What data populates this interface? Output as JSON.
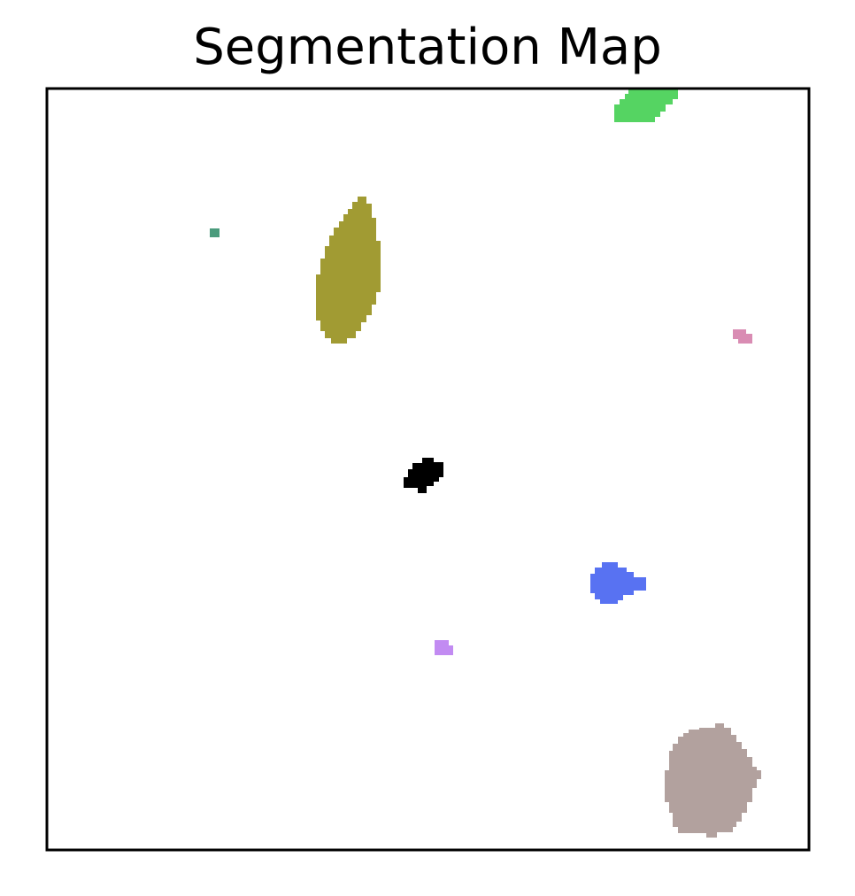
{
  "figure": {
    "title": "Segmentation Map"
  },
  "segments": [
    {
      "name": "segment-green",
      "color": "#55d462"
    },
    {
      "name": "segment-teal",
      "color": "#4a9b7c"
    },
    {
      "name": "segment-olive",
      "color": "#a19b33"
    },
    {
      "name": "segment-pink",
      "color": "#d98cb3"
    },
    {
      "name": "segment-black",
      "color": "#000000"
    },
    {
      "name": "segment-blue",
      "color": "#5872f2"
    },
    {
      "name": "segment-violet",
      "color": "#c28bf2"
    },
    {
      "name": "segment-taupe",
      "color": "#b2a19e"
    }
  ]
}
